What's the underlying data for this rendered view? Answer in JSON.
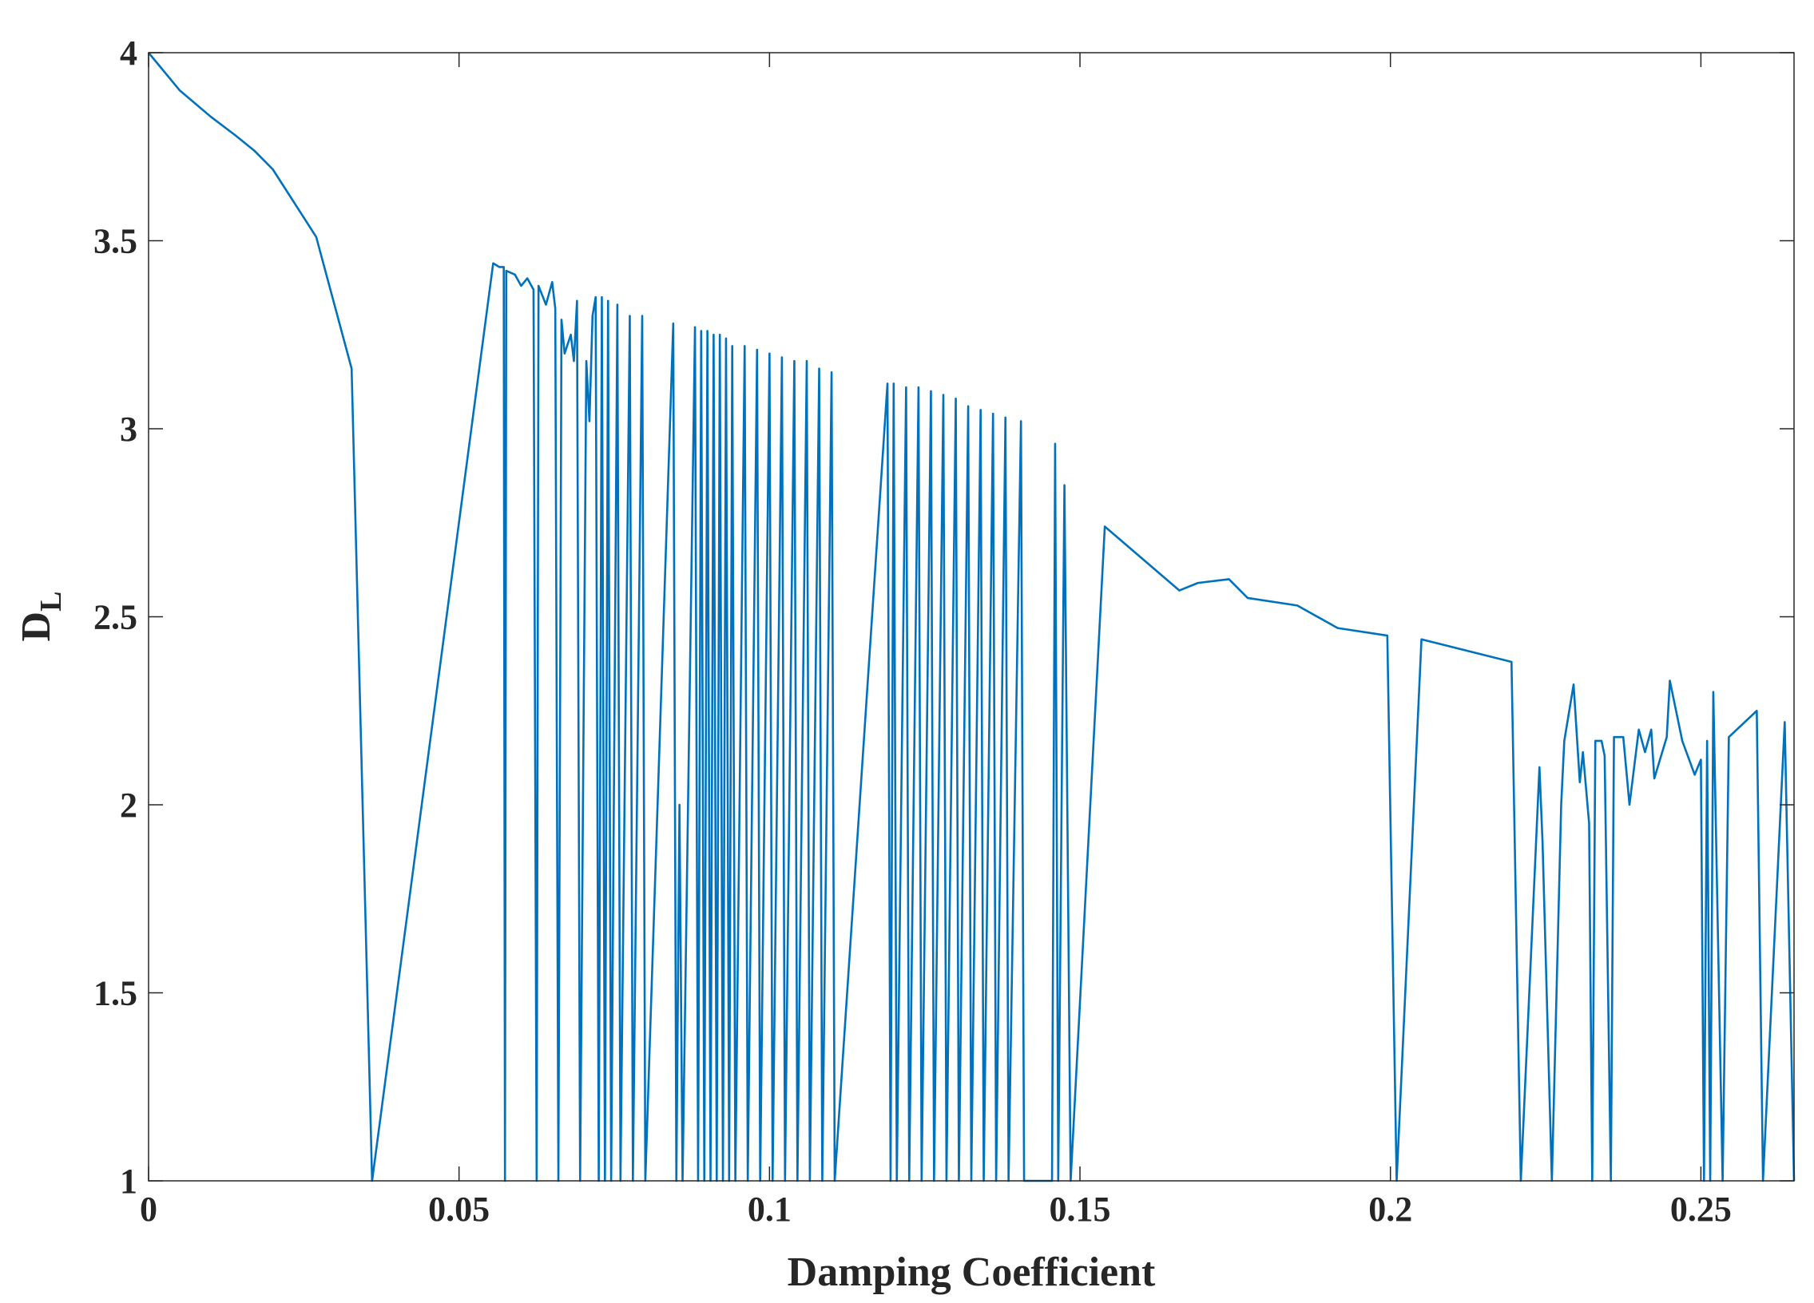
{
  "chart_data": {
    "type": "line",
    "xlabel": "Damping Coefficient",
    "ylabel": "D",
    "ylabel_subscript": "L",
    "xlim": [
      0,
      0.265
    ],
    "ylim": [
      1,
      4
    ],
    "xticks": [
      0,
      0.05,
      0.1,
      0.15,
      0.2,
      0.25
    ],
    "yticks": [
      1,
      1.5,
      2,
      2.5,
      3,
      3.5,
      4
    ],
    "box": true,
    "series": [
      {
        "color": "#0072bd",
        "x": [
          0,
          0.005,
          0.01,
          0.014,
          0.017,
          0.02,
          0.027,
          0.0327,
          0.036,
          0.0555,
          0.0565,
          0.0572,
          0.0574,
          0.0576,
          0.059,
          0.06,
          0.061,
          0.062,
          0.0625,
          0.0628,
          0.064,
          0.065,
          0.0655,
          0.066,
          0.0665,
          0.067,
          0.068,
          0.0685,
          0.069,
          0.0695,
          0.0705,
          0.071,
          0.0715,
          0.072,
          0.0725,
          0.073,
          0.0735,
          0.074,
          0.0745,
          0.0755,
          0.076,
          0.0775,
          0.078,
          0.0795,
          0.08,
          0.0845,
          0.085,
          0.0855,
          0.086,
          0.088,
          0.0885,
          0.089,
          0.0895,
          0.09,
          0.0905,
          0.091,
          0.0915,
          0.092,
          0.0925,
          0.093,
          0.0935,
          0.094,
          0.0945,
          0.096,
          0.0965,
          0.098,
          0.0985,
          0.1,
          0.1005,
          0.102,
          0.1025,
          0.104,
          0.1045,
          0.106,
          0.1065,
          0.108,
          0.1085,
          0.11,
          0.1105,
          0.119,
          0.1195,
          0.12,
          0.1205,
          0.122,
          0.1225,
          0.124,
          0.1245,
          0.126,
          0.1265,
          0.128,
          0.1285,
          0.13,
          0.1305,
          0.132,
          0.1325,
          0.134,
          0.1345,
          0.136,
          0.1365,
          0.138,
          0.1385,
          0.1405,
          0.141,
          0.1455,
          0.146,
          0.1465,
          0.1475,
          0.1485,
          0.154,
          0.166,
          0.169,
          0.174,
          0.177,
          0.185,
          0.1915,
          0.1995,
          0.201,
          0.205,
          0.2195,
          0.221,
          0.224,
          0.2245,
          0.226,
          0.2275,
          0.228,
          0.2295,
          0.2305,
          0.231,
          0.232,
          0.2325,
          0.233,
          0.234,
          0.2345,
          0.2355,
          0.236,
          0.2375,
          0.2385,
          0.24,
          0.241,
          0.242,
          0.2425,
          0.2445,
          0.245,
          0.247,
          0.249,
          0.25,
          0.2505,
          0.251,
          0.2515,
          0.252,
          0.2535,
          0.2545,
          0.259,
          0.26,
          0.2635,
          0.265
        ],
        "values": [
          4,
          3.9,
          3.83,
          3.78,
          3.74,
          3.69,
          3.51,
          3.16,
          1,
          3.44,
          3.43,
          3.43,
          1,
          3.42,
          3.41,
          3.38,
          3.4,
          3.37,
          1,
          3.38,
          3.33,
          3.39,
          3.32,
          1,
          3.29,
          3.2,
          3.25,
          3.18,
          3.34,
          1,
          3.18,
          3.02,
          3.3,
          3.35,
          1,
          3.35,
          1,
          3.34,
          1,
          3.33,
          1,
          3.3,
          1,
          3.3,
          1,
          3.28,
          1,
          2,
          1,
          3.27,
          1,
          3.26,
          1,
          3.26,
          1,
          3.25,
          1,
          3.25,
          1,
          3.24,
          1,
          3.22,
          1,
          3.22,
          1,
          3.21,
          1,
          3.2,
          1,
          3.19,
          1,
          3.18,
          1,
          3.18,
          1,
          3.16,
          1,
          3.15,
          1,
          3.12,
          1,
          3.12,
          1,
          3.11,
          1,
          3.11,
          1,
          3.1,
          1,
          3.09,
          1,
          3.08,
          1,
          3.06,
          1,
          3.05,
          1,
          3.04,
          1,
          3.03,
          1,
          3.02,
          1,
          1,
          2.96,
          1,
          2.85,
          1,
          2.74,
          2.57,
          2.59,
          2.6,
          2.55,
          2.53,
          2.47,
          2.45,
          1,
          2.44,
          2.38,
          1,
          2.1,
          1.9,
          1,
          2,
          2.17,
          2.32,
          2.06,
          2.14,
          1.95,
          1,
          2.17,
          2.17,
          2.13,
          1,
          2.18,
          2.18,
          2,
          2.2,
          2.14,
          2.2,
          2.07,
          2.18,
          2.33,
          2.17,
          2.08,
          2.12,
          1,
          2.17,
          1,
          2.3,
          1,
          2.18,
          2.25,
          1,
          2.22,
          1
        ]
      }
    ]
  }
}
